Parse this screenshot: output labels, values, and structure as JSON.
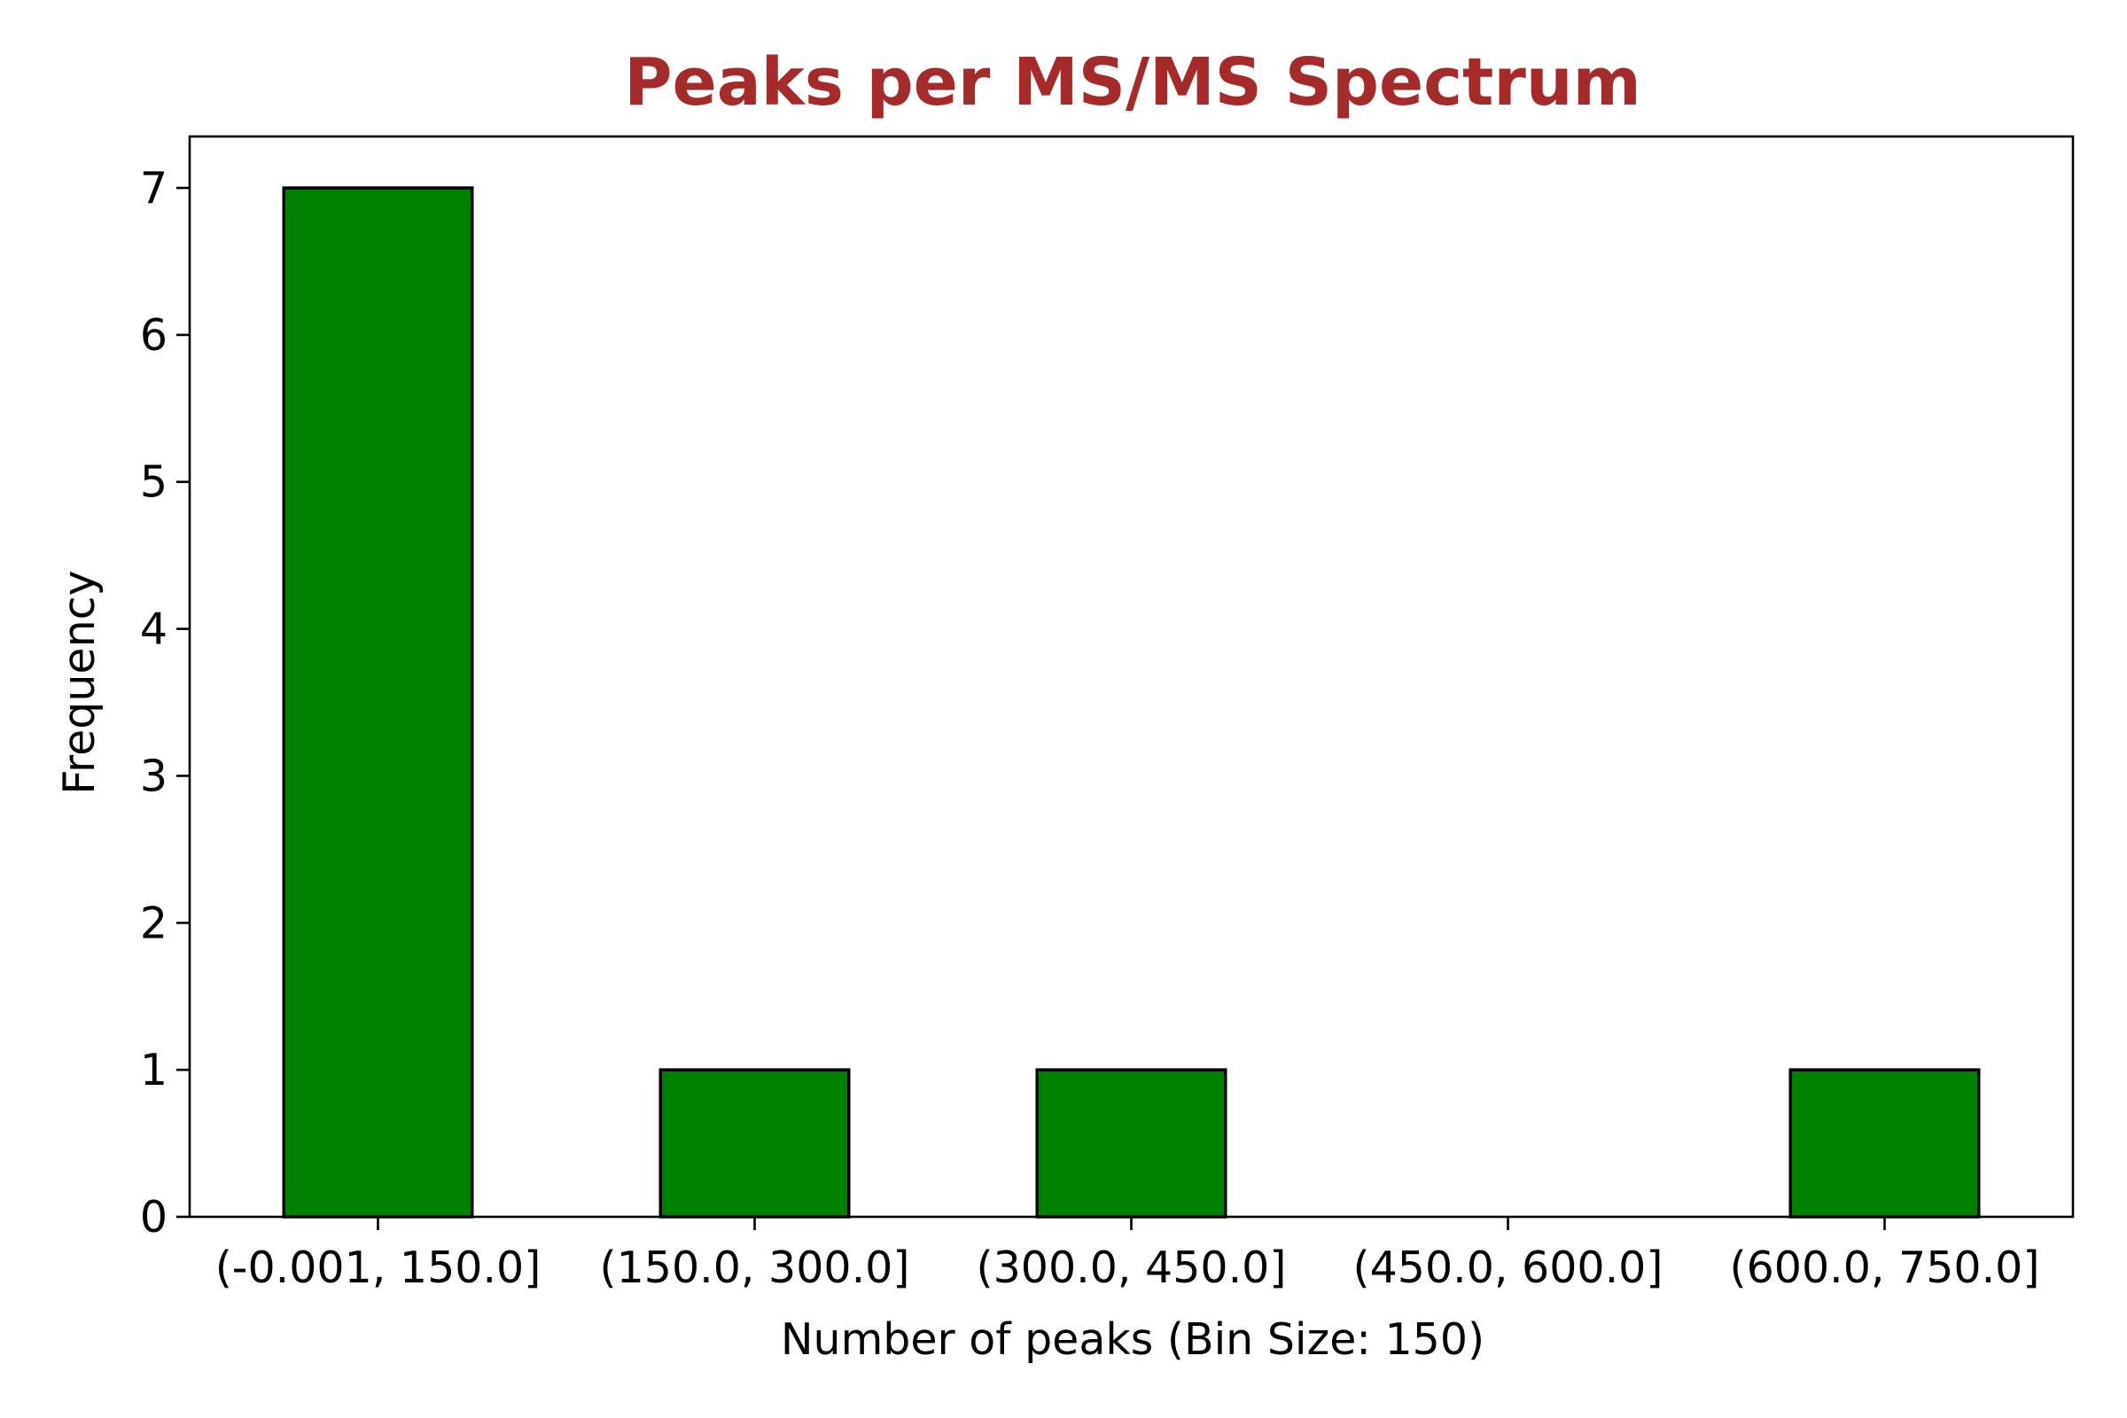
{
  "chart_data": {
    "type": "bar",
    "title": "Peaks per MS/MS Spectrum",
    "xlabel": "Number of peaks (Bin Size: 150)",
    "ylabel": "Frequency",
    "categories": [
      "(-0.001, 150.0]",
      "(150.0, 300.0]",
      "(300.0, 450.0]",
      "(450.0, 600.0]",
      "(600.0, 750.0]"
    ],
    "values": [
      7,
      1,
      1,
      0,
      1
    ],
    "ylim": [
      0,
      7.35
    ],
    "yticks": [
      0,
      1,
      2,
      3,
      4,
      5,
      6,
      7
    ],
    "grid": false,
    "legend": "none",
    "colors": {
      "bar_fill": "#008000",
      "bar_edge": "#000000",
      "title": "#a52a2a",
      "axis": "#000000"
    }
  }
}
